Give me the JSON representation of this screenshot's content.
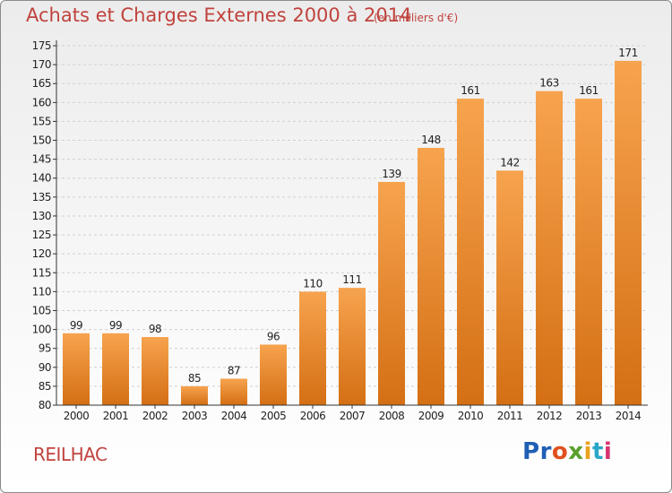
{
  "title": "Achats et Charges Externes 2000 à 2014",
  "subtitle": "(en milliers d'€)",
  "place": "REILHAC",
  "logo": {
    "letters": [
      "P",
      "r",
      "o",
      "x",
      "i",
      "t",
      "i"
    ],
    "colors": [
      "#1f5fb4",
      "#1f5fb4",
      "#e0501e",
      "#5aa02c",
      "#e9a21e",
      "#2aa6c8",
      "#d8336f"
    ]
  },
  "colors": {
    "bar_top": "#f7a34e",
    "bar_bottom": "#d46f14",
    "axis": "#333333",
    "grid": "#d0d0d0",
    "text": "#c0433e"
  },
  "chart_data": {
    "type": "bar",
    "categories": [
      "2000",
      "2001",
      "2002",
      "2003",
      "2004",
      "2005",
      "2006",
      "2007",
      "2008",
      "2009",
      "2010",
      "2011",
      "2012",
      "2013",
      "2014"
    ],
    "values": [
      99,
      99,
      98,
      85,
      87,
      96,
      110,
      111,
      139,
      148,
      161,
      142,
      163,
      161,
      171
    ],
    "ylim": [
      80,
      175
    ],
    "yticks": [
      80,
      85,
      90,
      95,
      100,
      105,
      110,
      115,
      120,
      125,
      130,
      135,
      140,
      145,
      150,
      155,
      160,
      165,
      170,
      175
    ],
    "grid": "horizontal dashed"
  }
}
